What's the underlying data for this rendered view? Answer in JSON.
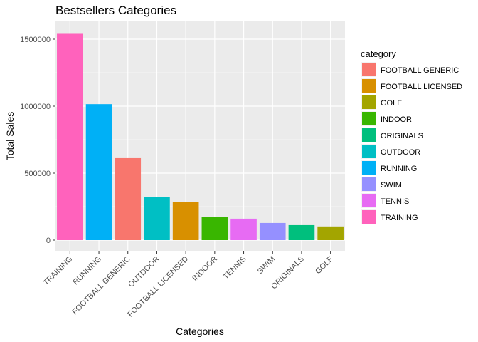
{
  "chart_data": {
    "type": "bar",
    "title": "Bestsellers Categories",
    "xlabel": "Categories",
    "ylabel": "Total Sales",
    "ylim": [
      0,
      1600000
    ],
    "y_ticks": [
      0,
      500000,
      1000000,
      1500000
    ],
    "y_tick_labels": [
      "0",
      "500000",
      "1000000",
      "1500000"
    ],
    "grid": true,
    "legend_position": "right",
    "legend_title": "category",
    "categories": [
      "TRAINING",
      "RUNNING",
      "FOOTBALL GENERIC",
      "OUTDOOR",
      "FOOTBALL LICENSED",
      "INDOOR",
      "TENNIS",
      "SWIM",
      "ORIGINALS",
      "GOLF"
    ],
    "values": [
      1540000,
      1015000,
      612000,
      323000,
      287000,
      175000,
      160000,
      128000,
      112000,
      102000
    ],
    "colors": {
      "FOOTBALL GENERIC": "#F8766D",
      "FOOTBALL LICENSED": "#D89000",
      "GOLF": "#A3A500",
      "INDOOR": "#39B600",
      "ORIGINALS": "#00BF7D",
      "OUTDOOR": "#00BFC4",
      "RUNNING": "#00B0F6",
      "SWIM": "#9590FF",
      "TENNIS": "#E76BF3",
      "TRAINING": "#FF62BC"
    },
    "legend_order": [
      "FOOTBALL GENERIC",
      "FOOTBALL LICENSED",
      "GOLF",
      "INDOOR",
      "ORIGINALS",
      "OUTDOOR",
      "RUNNING",
      "SWIM",
      "TENNIS",
      "TRAINING"
    ],
    "panel_background": "#EBEBEB",
    "grid_color": "#FFFFFF"
  }
}
